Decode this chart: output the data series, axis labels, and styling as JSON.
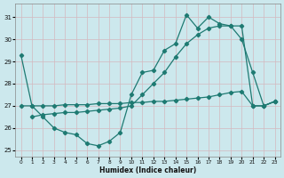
{
  "xlabel": "Humidex (Indice chaleur)",
  "bg_color": "#cce8ed",
  "grid_color": "#b8d8de",
  "line_color": "#1e7a72",
  "xlim": [
    -0.5,
    23.5
  ],
  "ylim": [
    24.7,
    31.6
  ],
  "yticks": [
    25,
    26,
    27,
    28,
    29,
    30,
    31
  ],
  "xticks": [
    0,
    1,
    2,
    3,
    4,
    5,
    6,
    7,
    8,
    9,
    10,
    11,
    12,
    13,
    14,
    15,
    16,
    17,
    18,
    19,
    20,
    21,
    22,
    23
  ],
  "line1_x": [
    0,
    1,
    2,
    3,
    4,
    5,
    6,
    7,
    8,
    9,
    10,
    11,
    12,
    13,
    14,
    15,
    16,
    17,
    18,
    19,
    20,
    21,
    22,
    23
  ],
  "line1_y": [
    29.3,
    27.0,
    26.5,
    26.0,
    25.8,
    25.7,
    25.3,
    25.2,
    25.4,
    25.8,
    27.5,
    28.5,
    28.6,
    29.5,
    29.8,
    31.1,
    30.5,
    31.0,
    30.7,
    30.6,
    30.0,
    28.5,
    27.0,
    27.2
  ],
  "line2_x": [
    0,
    1,
    2,
    3,
    4,
    5,
    6,
    7,
    8,
    9,
    10,
    11,
    12,
    13,
    14,
    15,
    16,
    17,
    18,
    19,
    20,
    21,
    22,
    23
  ],
  "line2_y": [
    27.0,
    27.0,
    27.0,
    27.0,
    27.05,
    27.05,
    27.05,
    27.1,
    27.1,
    27.1,
    27.15,
    27.15,
    27.2,
    27.2,
    27.25,
    27.3,
    27.35,
    27.4,
    27.5,
    27.6,
    27.65,
    27.0,
    27.0,
    27.2
  ],
  "line3_x": [
    1,
    2,
    3,
    4,
    5,
    6,
    7,
    8,
    9,
    10,
    11,
    12,
    13,
    14,
    15,
    16,
    17,
    18,
    19,
    20,
    21,
    22,
    23
  ],
  "line3_y": [
    26.5,
    26.6,
    26.65,
    26.7,
    26.7,
    26.75,
    26.8,
    26.85,
    26.9,
    27.0,
    27.5,
    28.0,
    28.5,
    29.2,
    29.8,
    30.2,
    30.5,
    30.6,
    30.6,
    30.6,
    27.0,
    27.0,
    27.2
  ]
}
